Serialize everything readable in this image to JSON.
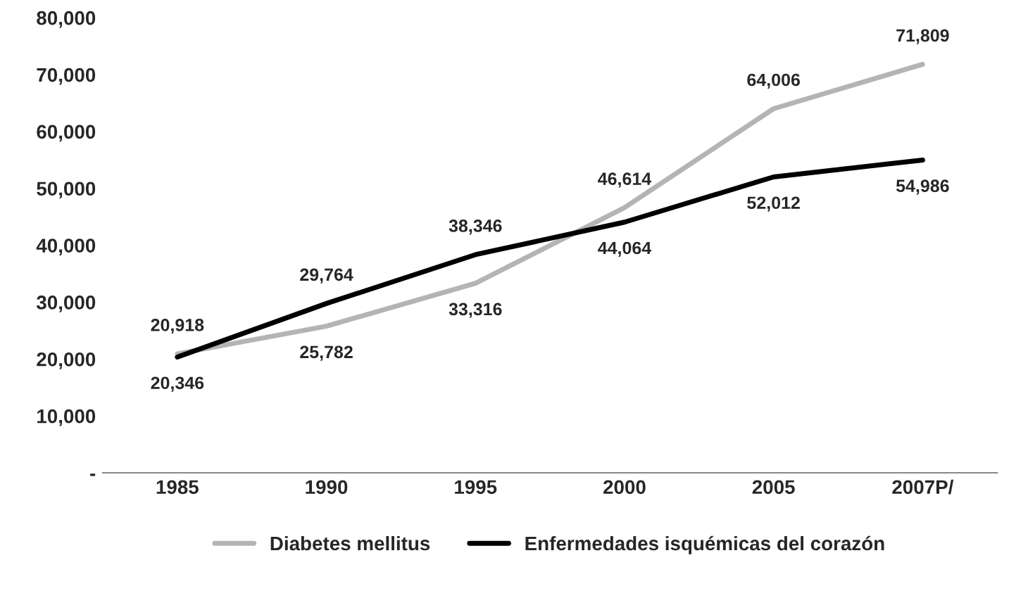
{
  "chart_data": {
    "type": "line",
    "categories": [
      "1985",
      "1990",
      "1995",
      "2000",
      "2005",
      "2007P/"
    ],
    "series": [
      {
        "name": "Diabetes mellitus",
        "color": "#b4b4b4",
        "values": [
          20918,
          25782,
          33316,
          46614,
          64006,
          71809
        ],
        "value_labels": [
          "20,918",
          "25,782",
          "33,316",
          "46,614",
          "64,006",
          "71,809"
        ]
      },
      {
        "name": "Enfermedades isquémicas del corazón",
        "color": "#000000",
        "values": [
          20346,
          29764,
          38346,
          44064,
          52012,
          54986
        ],
        "value_labels": [
          "20,346",
          "29,764",
          "38,346",
          "44,064",
          "52,012",
          "54,986"
        ]
      }
    ],
    "ylim": [
      0,
      80000
    ],
    "yticks": [
      {
        "value": 0,
        "label": "-"
      },
      {
        "value": 10000,
        "label": "10,000"
      },
      {
        "value": 20000,
        "label": "20,000"
      },
      {
        "value": 30000,
        "label": "30,000"
      },
      {
        "value": 40000,
        "label": "40,000"
      },
      {
        "value": 50000,
        "label": "50,000"
      },
      {
        "value": 60000,
        "label": "60,000"
      },
      {
        "value": 70000,
        "label": "70,000"
      },
      {
        "value": 80000,
        "label": "80,000"
      }
    ],
    "grid": false,
    "legend": "bottom",
    "marker": "none",
    "line_style": "solid"
  }
}
